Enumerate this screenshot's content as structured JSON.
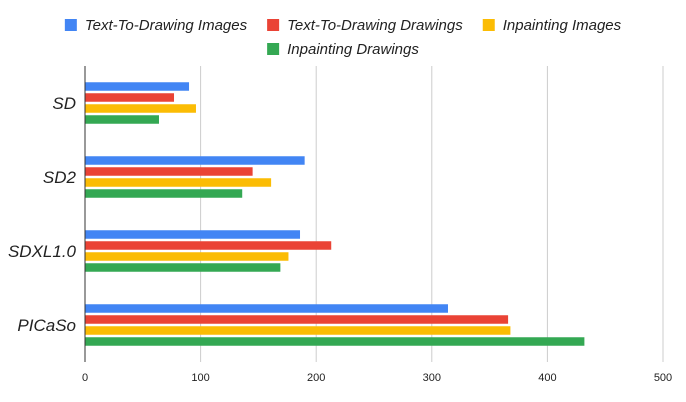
{
  "chart_data": {
    "type": "bar",
    "orientation": "horizontal",
    "categories": [
      "SD",
      "SD2",
      "SDXL1.0",
      "PICaSo"
    ],
    "series": [
      {
        "name": "Text-To-Drawing Images",
        "color": "#4285f4",
        "values": [
          90,
          190,
          186,
          314
        ]
      },
      {
        "name": "Text-To-Drawing Drawings",
        "color": "#ea4335",
        "values": [
          77,
          145,
          213,
          366
        ]
      },
      {
        "name": "Inpainting Images",
        "color": "#fbbc04",
        "values": [
          96,
          161,
          176,
          368
        ]
      },
      {
        "name": "Inpainting Drawings",
        "color": "#34a853",
        "values": [
          64,
          136,
          169,
          432
        ]
      }
    ],
    "xlim": [
      0,
      500
    ],
    "xticks": [
      "0",
      "100",
      "200",
      "300",
      "400",
      "500"
    ],
    "grid": "vertical",
    "legend_position": "top",
    "title": "",
    "xlabel": "",
    "ylabel": ""
  }
}
